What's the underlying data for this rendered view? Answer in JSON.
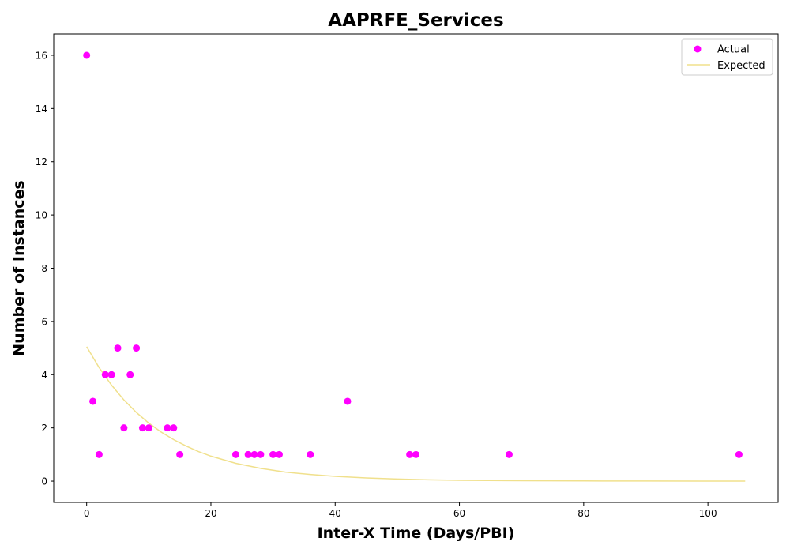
{
  "chart_data": {
    "type": "scatter",
    "title": "AAPRFE_Services",
    "xlabel": "Inter-X Time (Days/PBI)",
    "ylabel": "Number of Instances",
    "xlim": [
      -5.3,
      111.3
    ],
    "ylim": [
      -0.8,
      16.8
    ],
    "xticks": [
      0,
      20,
      40,
      60,
      80,
      100
    ],
    "yticks": [
      0,
      2,
      4,
      6,
      8,
      10,
      12,
      14,
      16
    ],
    "grid": false,
    "legend_position": "top-right",
    "series": [
      {
        "name": "Actual",
        "kind": "scatter",
        "color": "#ff00ff",
        "points": [
          [
            0,
            16
          ],
          [
            1,
            3
          ],
          [
            2,
            1
          ],
          [
            3,
            4
          ],
          [
            4,
            4
          ],
          [
            5,
            5
          ],
          [
            6,
            2
          ],
          [
            7,
            4
          ],
          [
            8,
            5
          ],
          [
            9,
            2
          ],
          [
            10,
            2
          ],
          [
            13,
            2
          ],
          [
            14,
            2
          ],
          [
            15,
            1
          ],
          [
            24,
            1
          ],
          [
            26,
            1
          ],
          [
            27,
            1
          ],
          [
            28,
            1
          ],
          [
            30,
            1
          ],
          [
            31,
            1
          ],
          [
            36,
            1
          ],
          [
            42,
            3
          ],
          [
            52,
            1
          ],
          [
            53,
            1
          ],
          [
            68,
            1
          ],
          [
            105,
            1
          ]
        ]
      },
      {
        "name": "Expected",
        "kind": "line",
        "color": "#f0e08c",
        "x": [
          0,
          2,
          4,
          6,
          8,
          10,
          12,
          14,
          16,
          18,
          20,
          24,
          28,
          32,
          36,
          40,
          45,
          50,
          55,
          60,
          70,
          80,
          90,
          100,
          106
        ],
        "values": [
          5.05,
          4.27,
          3.61,
          3.05,
          2.58,
          2.18,
          1.84,
          1.56,
          1.32,
          1.11,
          0.94,
          0.67,
          0.48,
          0.34,
          0.25,
          0.18,
          0.12,
          0.08,
          0.05,
          0.03,
          0.015,
          0.007,
          0.003,
          0.001,
          0.0
        ]
      }
    ]
  }
}
